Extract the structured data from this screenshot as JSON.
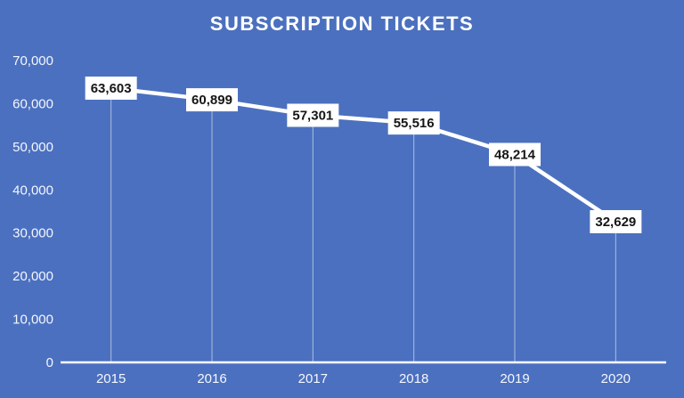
{
  "chart_data": {
    "type": "line",
    "title": "SUBSCRIPTION TICKETS",
    "categories": [
      "2015",
      "2016",
      "2017",
      "2018",
      "2019",
      "2020"
    ],
    "values": [
      63603,
      60899,
      57301,
      55516,
      48214,
      32629
    ],
    "data_labels": [
      "63,603",
      "60,899",
      "57,301",
      "55,516",
      "48,214",
      "32,629"
    ],
    "xlabel": "",
    "ylabel": "",
    "ylim": [
      0,
      70000
    ],
    "ytick_step": 10000,
    "ytick_labels": [
      "0",
      "10,000",
      "20,000",
      "30,000",
      "40,000",
      "50,000",
      "60,000",
      "70,000"
    ],
    "grid": false,
    "legend": "none",
    "colors": {
      "background": "#4B70BF",
      "line": "#ffffff",
      "axis_line": "#ffffff",
      "drop_line": "rgba(255,255,255,0.55)",
      "tick_text": "#f5f7ff",
      "title_text": "#ffffff",
      "data_label_bg": "#ffffff",
      "data_label_text": "#161616"
    }
  }
}
